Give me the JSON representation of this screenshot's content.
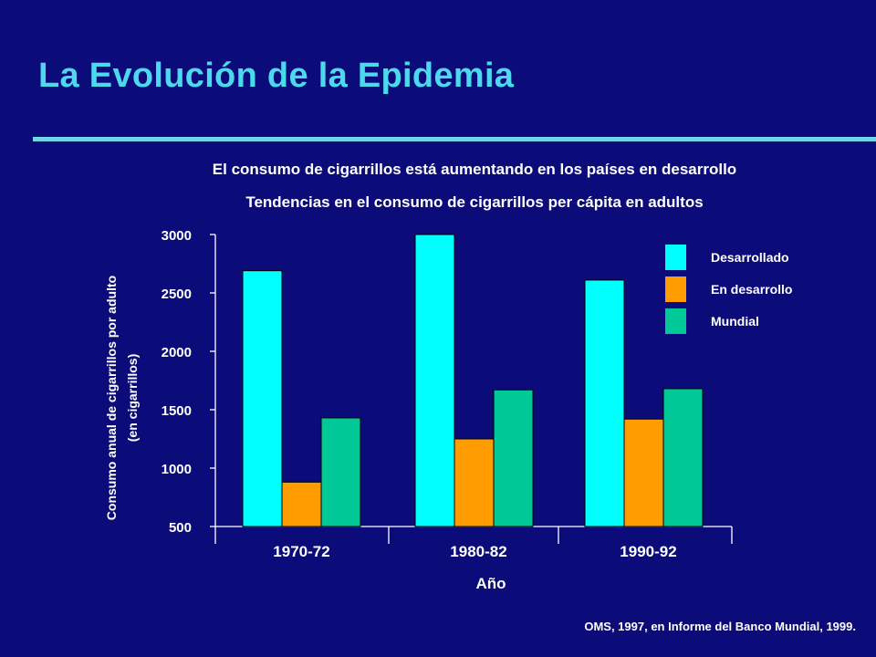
{
  "slide": {
    "title": "La Evolución de la Epidemia",
    "source": "OMS, 1997, en Informe del Banco Mundial, 1999."
  },
  "colors": {
    "background": "#0b0b7a",
    "title": "#4cd9ee",
    "rule": "#6fd6ea",
    "Desarrollado": "#00ffff",
    "En desarrollo": "#ff9c00",
    "Mundial": "#00c896"
  },
  "chart_data": {
    "type": "bar",
    "title": "El consumo de cigarrillos está aumentando en los países en desarrollo",
    "subtitle": "Tendencias en el consumo de cigarrillos per cápita en adultos",
    "xlabel": "Año",
    "ylabel": [
      "Consumo anual de cigarrillos por adulto",
      "(en cigarrillos)"
    ],
    "categories": [
      "1970-72",
      "1980-82",
      "1990-92"
    ],
    "series": [
      {
        "name": "Desarrollado",
        "values": [
          2690,
          3000,
          2610
        ]
      },
      {
        "name": "En desarrollo",
        "values": [
          880,
          1250,
          1420
        ]
      },
      {
        "name": "Mundial",
        "values": [
          1430,
          1670,
          1680
        ]
      }
    ],
    "ylim": [
      500,
      3000
    ],
    "yticks": [
      500,
      1000,
      1500,
      2000,
      2500,
      3000
    ],
    "grid": false,
    "legend": "top-right"
  }
}
